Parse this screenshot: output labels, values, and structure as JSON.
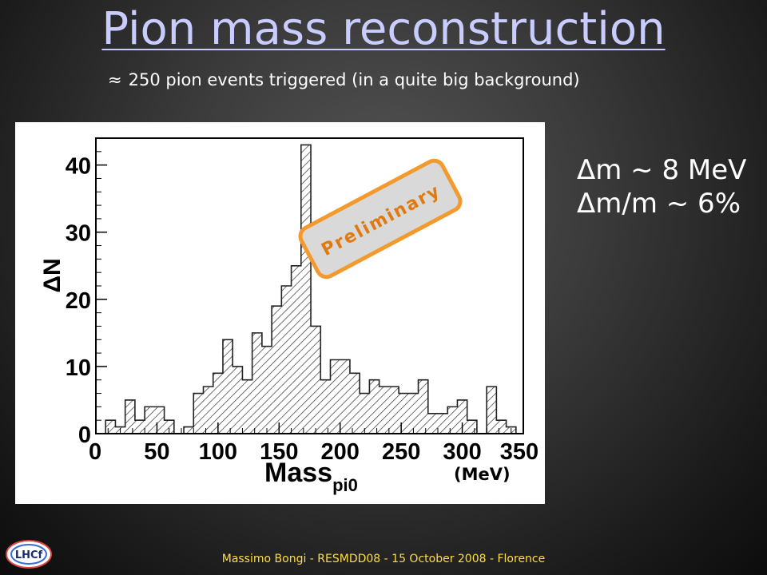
{
  "slide": {
    "title": "Pion mass reconstruction",
    "subtitle_symbol": "≈",
    "subtitle": "250 pion events triggered (in a quite big background)",
    "stat_1": "Δm ~ 8 MeV",
    "stat_2": "Δm/m ~ 6%",
    "footer": "Massimo Bongi - RESMDD08 - 15 October 2008 - Florence",
    "logo_text": "LHCf"
  },
  "chart_data": {
    "type": "bar",
    "title": "",
    "xlabel": "Mass",
    "xlabel_sub": "pi0",
    "ylabel": "ΔN",
    "unit_label": "(MeV)",
    "stamp": "Preliminary",
    "xlim": [
      0,
      350
    ],
    "ylim": [
      0,
      44
    ],
    "xticks": [
      0,
      50,
      100,
      150,
      200,
      250,
      300,
      350
    ],
    "yticks": [
      0,
      10,
      20,
      30,
      40
    ],
    "bin_width": 8,
    "bin_edges_start": 0,
    "values": [
      0,
      2,
      1,
      5,
      2,
      4,
      4,
      2,
      0,
      1,
      6,
      7,
      9,
      14,
      10,
      8,
      15,
      13,
      19,
      22,
      25,
      43,
      16,
      8,
      11,
      11,
      9,
      6,
      8,
      7,
      7,
      6,
      6,
      8,
      3,
      3,
      4,
      5,
      2,
      0,
      7,
      2,
      1,
      0,
      1,
      1,
      0,
      2
    ],
    "bar_fill": "hatched",
    "stamp_color": "#f39a2e"
  }
}
